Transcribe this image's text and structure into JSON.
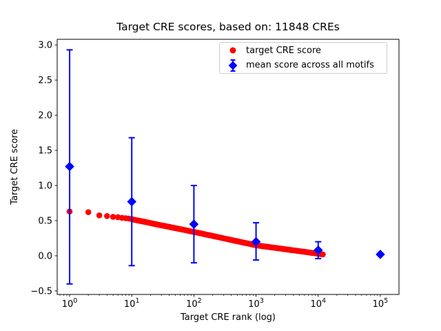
{
  "figure": {
    "title": "Target CRE scores, based on: 11848 CREs",
    "xlabel": "Target CRE rank (log)",
    "ylabel": "Target CRE score",
    "background": "#ffffff",
    "cre_count": "11848"
  },
  "chart_data": {
    "type": "scatter",
    "title": "Target CRE scores, based on: 11848 CREs",
    "xlabel": "Target CRE rank (log)",
    "ylabel": "Target CRE score",
    "x_scale": "log",
    "xlim_log10": [
      -0.2,
      5.3
    ],
    "ylim": [
      -0.55,
      3.08
    ],
    "x_tick_exponents": [
      0,
      1,
      2,
      3,
      4,
      5
    ],
    "x_tick_base": "10",
    "y_ticks": [
      "3.0",
      "2.5",
      "2.0",
      "1.5",
      "1.0",
      "0.5",
      "0.0",
      "−0.5"
    ],
    "y_tick_values": [
      3.0,
      2.5,
      2.0,
      1.5,
      1.0,
      0.5,
      0.0,
      -0.5
    ],
    "grid": false,
    "colors": {
      "red_series": "#ff0000",
      "blue_series": "#0000ff",
      "axis": "#000000",
      "legend_border": "#cccccc"
    },
    "series": [
      {
        "name": "target CRE score",
        "marker": "circle",
        "color": "#ff0000",
        "n_points_total": 11848,
        "samples": {
          "x": [
            1,
            2,
            3,
            4,
            5,
            6,
            7,
            8,
            9,
            10,
            13,
            16,
            20,
            25,
            32,
            40,
            50,
            63,
            79,
            100,
            126,
            158,
            200,
            251,
            316,
            398,
            501,
            631,
            794,
            1000,
            1259,
            1585,
            1995,
            2512,
            3162,
            3981,
            5012,
            6310,
            7943,
            10000,
            11848
          ],
          "y": [
            0.63,
            0.62,
            0.575,
            0.565,
            0.555,
            0.55,
            0.54,
            0.535,
            0.53,
            0.52,
            0.5,
            0.484,
            0.466,
            0.448,
            0.428,
            0.412,
            0.394,
            0.376,
            0.358,
            0.34,
            0.321,
            0.302,
            0.283,
            0.264,
            0.245,
            0.226,
            0.207,
            0.188,
            0.169,
            0.15,
            0.138,
            0.126,
            0.114,
            0.102,
            0.09,
            0.078,
            0.066,
            0.054,
            0.042,
            0.03,
            0.02
          ]
        }
      },
      {
        "name": "mean score across all motifs",
        "marker": "diamond",
        "color": "#0000ff",
        "x": [
          1,
          10,
          100,
          1000,
          10000,
          100000
        ],
        "y": [
          1.27,
          0.77,
          0.45,
          0.2,
          0.08,
          0.02
        ],
        "err_low": [
          1.67,
          0.91,
          0.55,
          0.26,
          0.12,
          0
        ],
        "err_high": [
          1.66,
          0.91,
          0.55,
          0.27,
          0.12,
          0
        ]
      }
    ],
    "legend": {
      "position": "upper right",
      "entries": [
        {
          "label": "target CRE score",
          "marker": "red-circle"
        },
        {
          "label": "mean score across all motifs",
          "marker": "blue-diamond-errorbar"
        }
      ]
    }
  }
}
